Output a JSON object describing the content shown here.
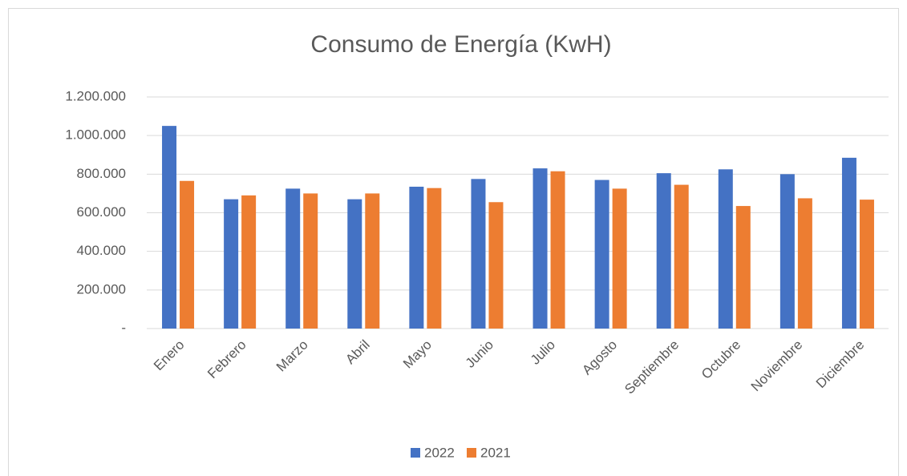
{
  "chart_data": {
    "type": "bar",
    "title": "Consumo de Energía (KwH)",
    "categories": [
      "Enero",
      "Febrero",
      "Marzo",
      "Abril",
      "Mayo",
      "Junio",
      "Julio",
      "Agosto",
      "Septiembre",
      "Octubre",
      "Noviembre",
      "Diciembre"
    ],
    "series": [
      {
        "name": "2022",
        "color": "#4472c4",
        "values": [
          1050000,
          670000,
          725000,
          670000,
          735000,
          775000,
          830000,
          770000,
          805000,
          825000,
          800000,
          885000
        ]
      },
      {
        "name": "2021",
        "color": "#ed7d31",
        "values": [
          765000,
          690000,
          700000,
          700000,
          728000,
          655000,
          815000,
          725000,
          745000,
          635000,
          675000,
          668000
        ]
      }
    ],
    "ylim": [
      0,
      1200000
    ],
    "yticks": [
      {
        "value": 0,
        "label": "-"
      },
      {
        "value": 200000,
        "label": "200.000"
      },
      {
        "value": 400000,
        "label": "400.000"
      },
      {
        "value": 600000,
        "label": "600.000"
      },
      {
        "value": 800000,
        "label": "800.000"
      },
      {
        "value": 1000000,
        "label": "1.000.000"
      },
      {
        "value": 1200000,
        "label": "1.200.000"
      }
    ],
    "grid": true,
    "legend": "bottom"
  }
}
